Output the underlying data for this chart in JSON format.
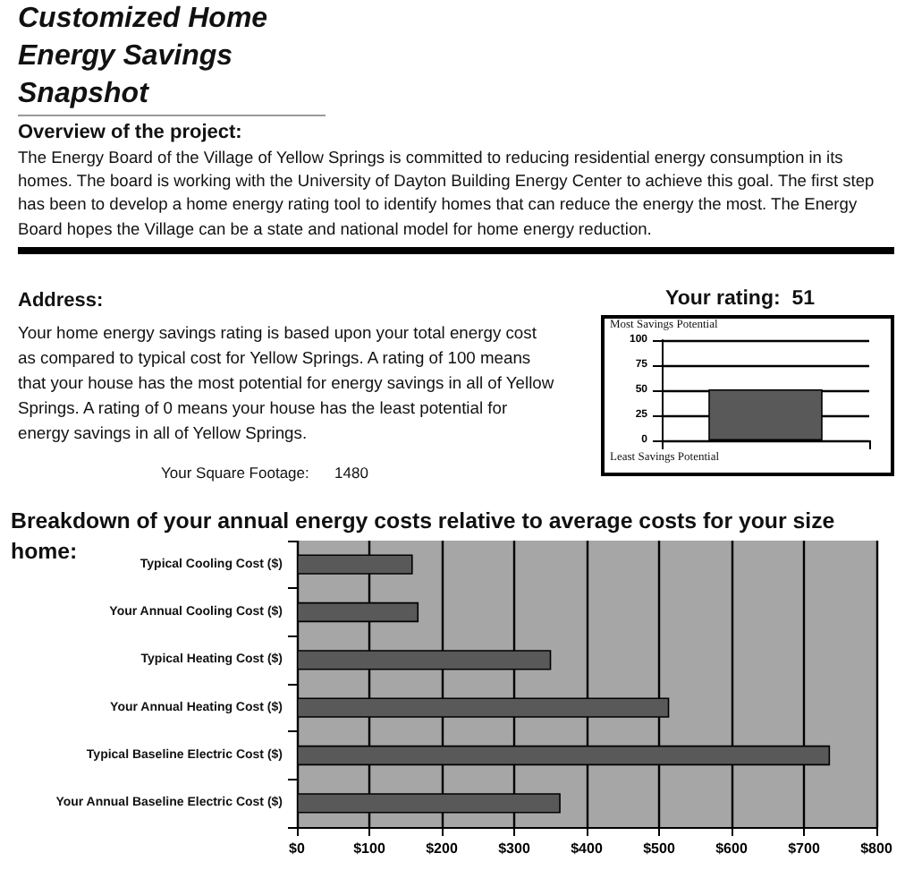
{
  "chart_data": [
    {
      "type": "bar",
      "title": "Your rating:  51",
      "annotations": [
        "Customized Home Energy Savings Snapshot",
        "Overview of the project:",
        "The Energy Board of the Village of Yellow Springs is committed to reducing residential energy consumption in its homes. The board is working with the University of Dayton Building Energy Center to achieve this goal. The first step  has been to develop a home energy rating tool to identify homes that can reduce the energy the most. The Energy Board hopes the Village can be a state and national model for home energy reduction.",
        "Address:",
        "Your home energy savings rating is based upon your total energy cost as compared to typical cost for Yellow Springs. A rating of 100 means that your house has the most potential for energy savings in all of Yellow Springs. A rating of 0 means your house has the least potential for energy savings in all of Yellow Springs.",
        "Your Square Footage:      1480",
        "Most Savings Potential",
        "Least Savings Potential"
      ],
      "categories": [
        null
      ],
      "values": [
        51
      ],
      "color": "#595959",
      "ylim": [
        0,
        100
      ],
      "yticks": [
        0,
        25,
        50,
        75,
        100
      ],
      "grid": "y"
    },
    {
      "type": "bar",
      "orientation": "horizontal",
      "title": "Breakdown of your annual energy costs relative to  average costs for your size home:",
      "categories": [
        "Typical Cooling Cost ($)",
        "Your Annual Cooling Cost ($)",
        "Typical Heating Cost ($)",
        "Your Annual Heating Cost ($)",
        "Typical Baseline Electric Cost ($)",
        "Your Annual Baseline Electric Cost ($)"
      ],
      "values": [
        160,
        168,
        351,
        514,
        736,
        364
      ],
      "color": "#595959",
      "xlim": [
        0,
        800
      ],
      "xticks": [
        {
          "value": 0,
          "label": "$0"
        },
        {
          "value": 100,
          "label": "$100"
        },
        {
          "value": 200,
          "label": "$200"
        },
        {
          "value": 300,
          "label": "$300"
        },
        {
          "value": 400,
          "label": "$400"
        },
        {
          "value": 500,
          "label": "$500"
        },
        {
          "value": 600,
          "label": "$600"
        },
        {
          "value": 700,
          "label": "$700"
        },
        {
          "value": 800,
          "label": "$800"
        }
      ],
      "grid": "x"
    }
  ]
}
